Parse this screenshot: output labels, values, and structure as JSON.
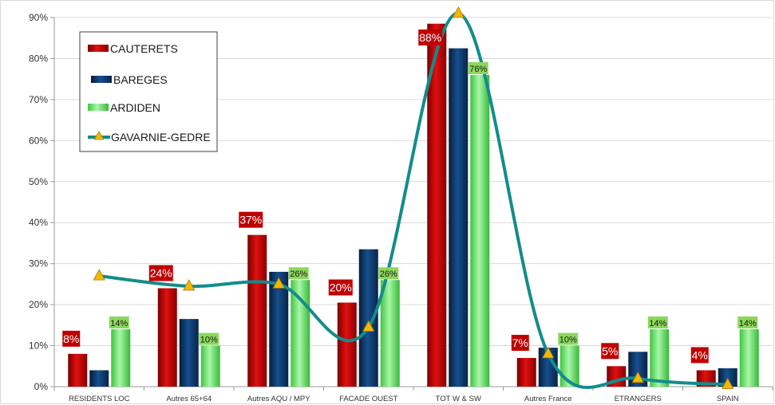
{
  "chart_data": {
    "type": "bar",
    "categories": [
      "RESIDENTS LOC",
      "Autres 65+64",
      "Autres AQU / MPY",
      "FACADE OUEST",
      "TOT W & SW",
      "Autres France",
      "ETRANGERS",
      "SPAIN"
    ],
    "ylim": [
      0,
      90
    ],
    "yticks": [
      "0%",
      "10%",
      "20%",
      "30%",
      "40%",
      "50%",
      "60%",
      "70%",
      "80%",
      "90%"
    ],
    "ytick_values": [
      0,
      10,
      20,
      30,
      40,
      50,
      60,
      70,
      80,
      90
    ],
    "grid": true,
    "legend_position": "top-left",
    "series": [
      {
        "name": "CAUTERETS",
        "kind": "bar",
        "color": "#c00000",
        "values": [
          8,
          24,
          37,
          20.5,
          88.5,
          7,
          5,
          4
        ],
        "labels": [
          "8%",
          "24%",
          "37%",
          "20%",
          "88%",
          "7%",
          "5%",
          "4%"
        ]
      },
      {
        "name": "BAREGES",
        "kind": "bar",
        "color": "#0b3a6e",
        "values": [
          4,
          16.5,
          28,
          33.5,
          82.5,
          9.5,
          8.5,
          4.5
        ],
        "labels": [
          "",
          "",
          "",
          "",
          "",
          "",
          "",
          ""
        ]
      },
      {
        "name": "ARDIDEN",
        "kind": "bar",
        "color": "#4cd64c",
        "values": [
          14,
          10,
          26,
          26,
          76,
          10,
          14,
          14
        ],
        "labels": [
          "14%",
          "10%",
          "26%",
          "26%",
          "76%",
          "10%",
          "14%",
          "14%"
        ]
      },
      {
        "name": "GAVARNIE-GEDRE",
        "kind": "line",
        "color": "#138c8c",
        "marker_color": "#f2b705",
        "values": [
          27,
          24.5,
          25,
          14.5,
          91,
          8,
          2,
          0.5
        ]
      }
    ]
  }
}
